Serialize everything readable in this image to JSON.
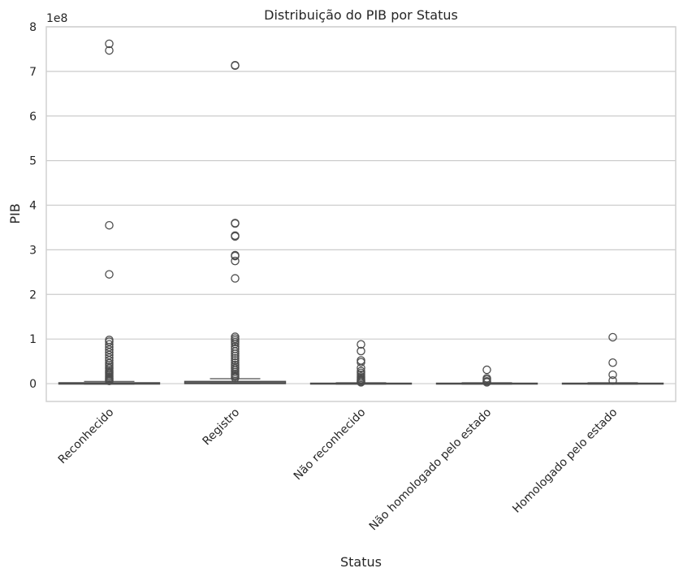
{
  "chart_data": {
    "type": "box",
    "title": "Distribuição do PIB por Status",
    "xlabel": "Status",
    "ylabel": "PIB",
    "y_offset_label": "1e8",
    "y_unit_multiplier": 100000000,
    "ylim": [
      -0.4,
      8.0
    ],
    "yticks": [
      0,
      1,
      2,
      3,
      4,
      5,
      6,
      7,
      8
    ],
    "grid": true,
    "box_color": "#4d4d4d",
    "grid_color": "#cccccc",
    "categories": [
      {
        "name": "Reconhecido",
        "q1": -0.01,
        "median": 0.0,
        "q3": 0.02,
        "whisker_low": -0.01,
        "whisker_high": 0.05,
        "outliers": [
          7.62,
          7.47,
          3.55,
          2.45,
          0.98,
          0.94,
          0.88,
          0.82,
          0.76,
          0.7,
          0.64,
          0.58,
          0.52,
          0.46,
          0.42,
          0.38,
          0.34,
          0.3,
          0.27,
          0.24,
          0.21,
          0.18,
          0.15,
          0.12,
          0.1,
          0.08,
          0.06
        ]
      },
      {
        "name": "Registro",
        "q1": 0.0,
        "median": 0.02,
        "q3": 0.05,
        "whisker_low": 0.0,
        "whisker_high": 0.11,
        "outliers": [
          7.14,
          7.13,
          3.6,
          3.59,
          3.32,
          3.3,
          2.88,
          2.86,
          2.75,
          2.36,
          1.05,
          1.01,
          0.97,
          0.93,
          0.89,
          0.83,
          0.78,
          0.72,
          0.67,
          0.62,
          0.57,
          0.52,
          0.47,
          0.42,
          0.38,
          0.34,
          0.3,
          0.26,
          0.22,
          0.19,
          0.16,
          0.13
        ]
      },
      {
        "name": "Não reconhecido",
        "q1": -0.01,
        "median": 0.0,
        "q3": 0.01,
        "whisker_low": -0.01,
        "whisker_high": 0.02,
        "outliers": [
          0.88,
          0.73,
          0.52,
          0.48,
          0.35,
          0.28,
          0.24,
          0.2,
          0.16,
          0.13,
          0.1,
          0.08,
          0.06,
          0.04,
          0.03
        ]
      },
      {
        "name": "Não homologado pelo estado",
        "q1": -0.01,
        "median": 0.0,
        "q3": 0.01,
        "whisker_low": -0.01,
        "whisker_high": 0.02,
        "outliers": [
          0.31,
          0.12,
          0.09,
          0.05,
          0.03
        ]
      },
      {
        "name": "Homologado pelo estado",
        "q1": -0.01,
        "median": 0.0,
        "q3": 0.01,
        "whisker_low": -0.01,
        "whisker_high": 0.02,
        "outliers": [
          1.04,
          0.47,
          0.2,
          0.07
        ]
      }
    ]
  }
}
